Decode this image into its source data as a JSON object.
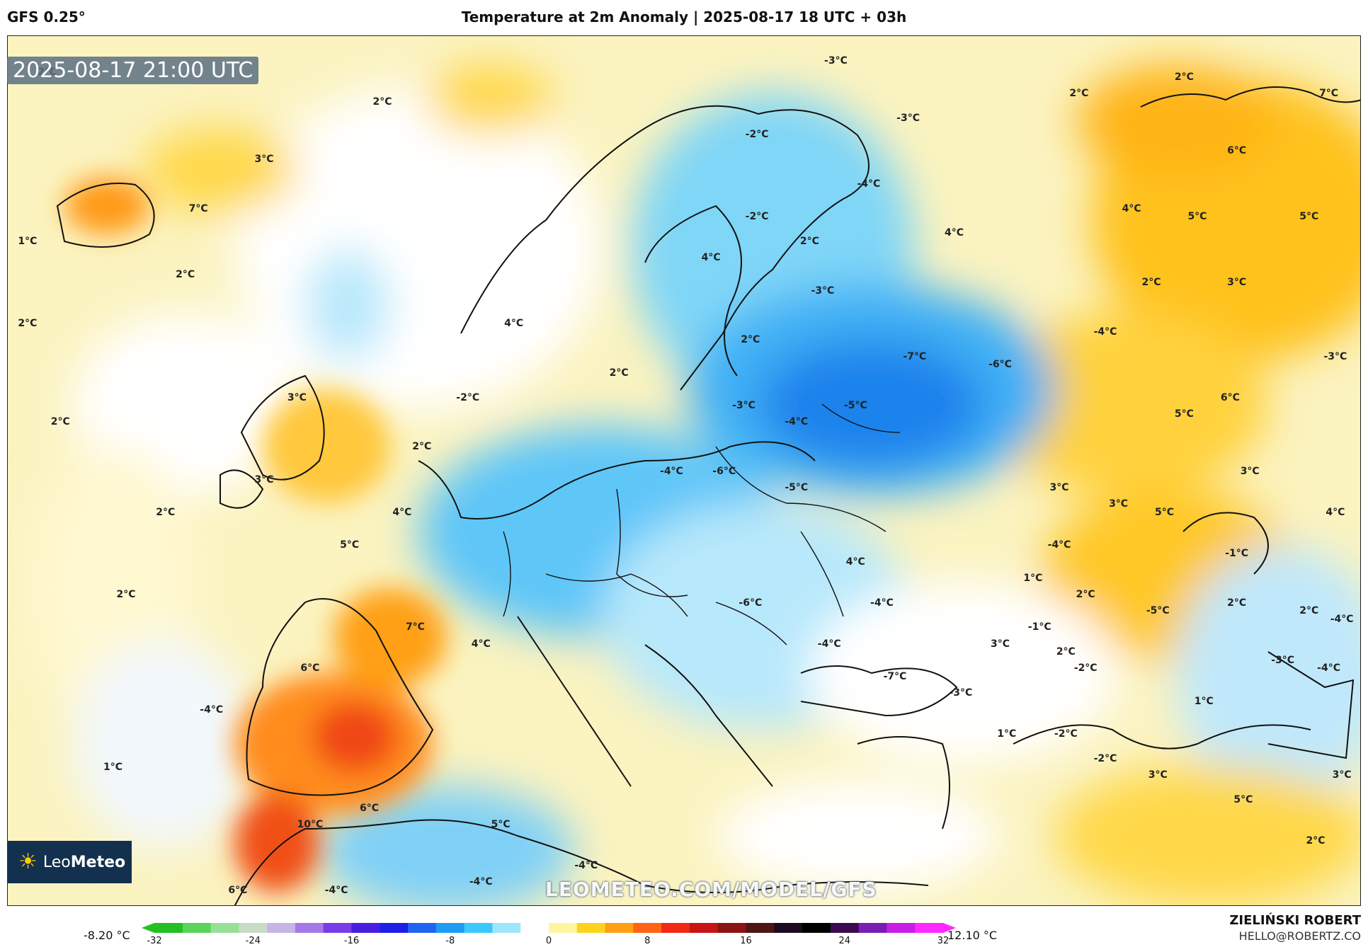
{
  "header": {
    "model": "GFS 0.25°",
    "title": "Temperature at 2m Anomaly | 2025-08-17 18 UTC + 03h"
  },
  "map": {
    "timestamp": "2025-08-17 21:00 UTC",
    "watermark": "LEOMETEO.COM/MODEL/GFS",
    "logo_text_light": "Leo",
    "logo_text_bold": "Meteo",
    "logo_icon": "sun-icon",
    "labels": [
      {
        "text": "2°C",
        "lon": -42.0,
        "lat": 70.8
      },
      {
        "text": "2°C",
        "lon": -16.5,
        "lat": 69.0
      },
      {
        "text": "3°C",
        "lon": -25.5,
        "lat": 65.5
      },
      {
        "text": "7°C",
        "lon": -30.5,
        "lat": 62.5
      },
      {
        "text": "1°C",
        "lon": -43.5,
        "lat": 60.5
      },
      {
        "text": "2°C",
        "lon": -31.5,
        "lat": 58.5
      },
      {
        "text": "2°C",
        "lon": -43.5,
        "lat": 55.5
      },
      {
        "text": "4°C",
        "lon": -6.5,
        "lat": 55.5
      },
      {
        "text": "2°C",
        "lon": 1.5,
        "lat": 52.5
      },
      {
        "text": "3°C",
        "lon": -23.0,
        "lat": 51.0
      },
      {
        "text": "-2°C",
        "lon": -10.0,
        "lat": 51.0
      },
      {
        "text": "2°C",
        "lon": -41.0,
        "lat": 49.5
      },
      {
        "text": "2°C",
        "lon": -13.5,
        "lat": 48.0
      },
      {
        "text": "3°C",
        "lon": -25.5,
        "lat": 46.0
      },
      {
        "text": "2°C",
        "lon": -33.0,
        "lat": 44.0
      },
      {
        "text": "4°C",
        "lon": -15.0,
        "lat": 44.0
      },
      {
        "text": "5°C",
        "lon": -19.0,
        "lat": 42.0
      },
      {
        "text": "2°C",
        "lon": -36.0,
        "lat": 39.0
      },
      {
        "text": "7°C",
        "lon": -14.0,
        "lat": 37.0
      },
      {
        "text": "4°C",
        "lon": -9.0,
        "lat": 36.0
      },
      {
        "text": "6°C",
        "lon": -22.0,
        "lat": 34.5
      },
      {
        "text": "-4°C",
        "lon": -29.5,
        "lat": 32.0
      },
      {
        "text": "1°C",
        "lon": -37.0,
        "lat": 28.5
      },
      {
        "text": "6°C",
        "lon": -17.5,
        "lat": 26.0
      },
      {
        "text": "10°C",
        "lon": -22.0,
        "lat": 25.0
      },
      {
        "text": "5°C",
        "lon": -7.5,
        "lat": 25.0
      },
      {
        "text": "6°C",
        "lon": -27.5,
        "lat": 21.0
      },
      {
        "text": "-4°C",
        "lon": -20.0,
        "lat": 21.0
      },
      {
        "text": "-4°C",
        "lon": -9.0,
        "lat": 21.5
      },
      {
        "text": "-4°C",
        "lon": -1.0,
        "lat": 22.5
      },
      {
        "text": "-3°C",
        "lon": 18.0,
        "lat": 71.5
      },
      {
        "text": "-2°C",
        "lon": 12.0,
        "lat": 67.0
      },
      {
        "text": "-3°C",
        "lon": 23.5,
        "lat": 68.0
      },
      {
        "text": "-4°C",
        "lon": 20.5,
        "lat": 64.0
      },
      {
        "text": "-2°C",
        "lon": 12.0,
        "lat": 62.0
      },
      {
        "text": "2°C",
        "lon": 16.0,
        "lat": 60.5
      },
      {
        "text": "4°C",
        "lon": 27.0,
        "lat": 61.0
      },
      {
        "text": "4°C",
        "lon": 8.5,
        "lat": 59.5
      },
      {
        "text": "-3°C",
        "lon": 17.0,
        "lat": 57.5
      },
      {
        "text": "2°C",
        "lon": 11.5,
        "lat": 54.5
      },
      {
        "text": "-7°C",
        "lon": 24.0,
        "lat": 53.5
      },
      {
        "text": "-6°C",
        "lon": 30.5,
        "lat": 53.0
      },
      {
        "text": "-4°C",
        "lon": 38.5,
        "lat": 55.0
      },
      {
        "text": "-3°C",
        "lon": 11.0,
        "lat": 50.5
      },
      {
        "text": "-5°C",
        "lon": 19.5,
        "lat": 50.5
      },
      {
        "text": "-4°C",
        "lon": 15.0,
        "lat": 49.5
      },
      {
        "text": "-4°C",
        "lon": 5.5,
        "lat": 46.5
      },
      {
        "text": "-6°C",
        "lon": 9.5,
        "lat": 46.5
      },
      {
        "text": "-5°C",
        "lon": 15.0,
        "lat": 45.5
      },
      {
        "text": "4°C",
        "lon": 19.5,
        "lat": 41.0
      },
      {
        "text": "-6°C",
        "lon": 11.5,
        "lat": 38.5
      },
      {
        "text": "-4°C",
        "lon": 21.5,
        "lat": 38.5
      },
      {
        "text": "-4°C",
        "lon": 17.5,
        "lat": 36.0
      },
      {
        "text": "-7°C",
        "lon": 22.5,
        "lat": 34.0
      },
      {
        "text": "-3°C",
        "lon": 27.5,
        "lat": 33.0
      },
      {
        "text": "1°C",
        "lon": 33.0,
        "lat": 40.0
      },
      {
        "text": "3°C",
        "lon": 30.5,
        "lat": 36.0
      },
      {
        "text": "-4°C",
        "lon": 35.0,
        "lat": 42.0
      },
      {
        "text": "2°C",
        "lon": 37.0,
        "lat": 39.0
      },
      {
        "text": "-1°C",
        "lon": 33.5,
        "lat": 37.0
      },
      {
        "text": "2°C",
        "lon": 35.5,
        "lat": 35.5
      },
      {
        "text": "-2°C",
        "lon": 37.0,
        "lat": 34.5
      },
      {
        "text": "-2°C",
        "lon": 35.5,
        "lat": 30.5
      },
      {
        "text": "1°C",
        "lon": 31.0,
        "lat": 30.5
      },
      {
        "text": "-2°C",
        "lon": 38.5,
        "lat": 29.0
      },
      {
        "text": "3°C",
        "lon": 35.0,
        "lat": 45.5
      },
      {
        "text": "3°C",
        "lon": 39.5,
        "lat": 44.5
      },
      {
        "text": "5°C",
        "lon": 43.0,
        "lat": 44.0
      },
      {
        "text": "-5°C",
        "lon": 42.5,
        "lat": 38.0
      },
      {
        "text": "-1°C",
        "lon": 48.5,
        "lat": 41.5
      },
      {
        "text": "2°C",
        "lon": 48.5,
        "lat": 38.5
      },
      {
        "text": "-3°C",
        "lon": 52.0,
        "lat": 35.0
      },
      {
        "text": "1°C",
        "lon": 46.0,
        "lat": 32.5
      },
      {
        "text": "3°C",
        "lon": 42.5,
        "lat": 28.0
      },
      {
        "text": "5°C",
        "lon": 49.0,
        "lat": 26.5
      },
      {
        "text": "2°C",
        "lon": 54.5,
        "lat": 24.0
      },
      {
        "text": "2°C",
        "lon": 36.5,
        "lat": 69.5
      },
      {
        "text": "2°C",
        "lon": 44.5,
        "lat": 70.5
      },
      {
        "text": "6°C",
        "lon": 48.5,
        "lat": 66.0
      },
      {
        "text": "7°C",
        "lon": 55.5,
        "lat": 69.5
      },
      {
        "text": "5°C",
        "lon": 45.5,
        "lat": 62.0
      },
      {
        "text": "5°C",
        "lon": 54.0,
        "lat": 62.0
      },
      {
        "text": "4°C",
        "lon": 40.5,
        "lat": 62.5
      },
      {
        "text": "2°C",
        "lon": 42.0,
        "lat": 58.0
      },
      {
        "text": "3°C",
        "lon": 48.5,
        "lat": 58.0
      },
      {
        "text": "-3°C",
        "lon": 56.0,
        "lat": 53.5
      },
      {
        "text": "6°C",
        "lon": 48.0,
        "lat": 51.0
      },
      {
        "text": "5°C",
        "lon": 44.5,
        "lat": 50.0
      },
      {
        "text": "3°C",
        "lon": 49.5,
        "lat": 46.5
      },
      {
        "text": "4°C",
        "lon": 56.0,
        "lat": 44.0
      },
      {
        "text": "2°C",
        "lon": 54.0,
        "lat": 38.0
      },
      {
        "text": "-4°C",
        "lon": 56.5,
        "lat": 37.5
      },
      {
        "text": "-4°C",
        "lon": 55.5,
        "lat": 34.5
      },
      {
        "text": "3°C",
        "lon": 56.5,
        "lat": 28.0
      }
    ]
  },
  "colorbar": {
    "min_label": "-8.20 °C",
    "max_label": "12.10 °C",
    "range": [
      -32,
      32
    ],
    "ticks": [
      "-32",
      "-24",
      "-16",
      "-8",
      "0",
      "8",
      "16",
      "24",
      "32"
    ],
    "colors": [
      "#22c022",
      "#5ad45a",
      "#98e098",
      "#c8dcc8",
      "#c8b4e6",
      "#a478e6",
      "#7a3ce6",
      "#4a1ee0",
      "#1e1ee6",
      "#1e64f0",
      "#1e9cf5",
      "#3cc8fa",
      "#9ee6fc",
      "#ffffff",
      "#fff5a0",
      "#ffd21e",
      "#ffa014",
      "#ff6414",
      "#f02814",
      "#c81414",
      "#8c1414",
      "#501414",
      "#1e0a1e",
      "#000000",
      "#3c0a50",
      "#781eb4",
      "#c81ee6",
      "#ff28ff"
    ]
  },
  "footer": {
    "author": "ZIELIŃSKI ROBERT",
    "email": "HELLO@ROBERTZ.CO"
  }
}
